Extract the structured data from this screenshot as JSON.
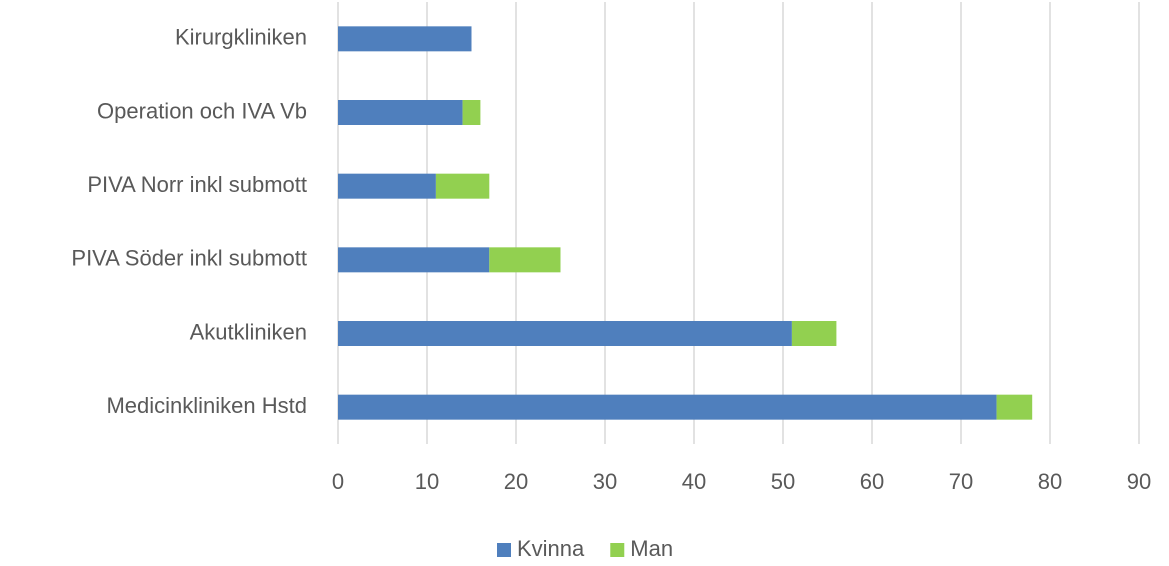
{
  "chart_data": {
    "type": "stacked_barh",
    "categories": [
      "Kirurgkliniken",
      "Operation och IVA Vb",
      "PIVA Norr inkl submott",
      "PIVA Söder inkl submott",
      "Akutkliniken",
      "Medicinkliniken Hstd"
    ],
    "series": [
      {
        "name": "Kvinna",
        "color": "#4f7fbd",
        "values": [
          15,
          14,
          11,
          17,
          51,
          74
        ]
      },
      {
        "name": "Man",
        "color": "#92d050",
        "values": [
          0,
          2,
          6,
          8,
          5,
          4
        ]
      }
    ],
    "xlim": [
      0,
      90
    ],
    "xticks": [
      0,
      10,
      20,
      30,
      40,
      50,
      60,
      70,
      80,
      90
    ],
    "grid": true,
    "legend": "bottom"
  }
}
